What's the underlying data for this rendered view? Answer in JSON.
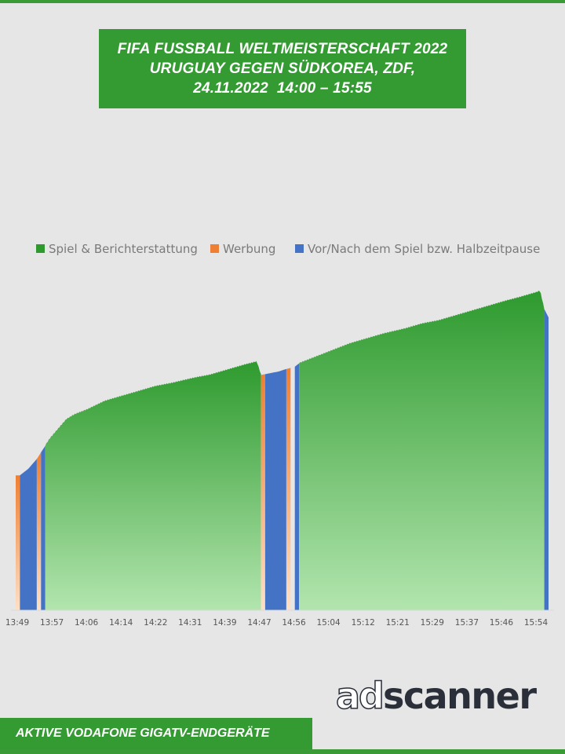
{
  "title": {
    "line1": "FIFA FUSSBALL WELTMEISTERSCHAFT 2022",
    "line2": "URUGUAY GEGEN SÜDKOREA, ZDF,",
    "line3": "24.11.2022  14:00 – 15:55"
  },
  "footer": {
    "label": "AKTIVE VODAFONE GIGATV-ENDGERÄTE"
  },
  "logo": {
    "part1": "ad",
    "part2": "scanner"
  },
  "colors": {
    "background": "#e6e6e6",
    "brand_green": "#349b33",
    "spiel_top": "#2e9a2e",
    "spiel_bottom": "#b2e5ae",
    "werbung_top": "#ef7f32",
    "werbung_bottom": "#fde0c7",
    "vor_nach": "#4472c4"
  },
  "chart_data": {
    "type": "area",
    "legend_position": "top",
    "grid": false,
    "y_axis_shown": false,
    "x_tick_labels": [
      "13:49",
      "13:57",
      "14:06",
      "14:14",
      "14:22",
      "14:31",
      "14:39",
      "14:47",
      "14:56",
      "15:04",
      "15:12",
      "15:21",
      "15:29",
      "15:37",
      "15:46",
      "15:54"
    ],
    "series": [
      {
        "name": "Spiel & Berichterstattung",
        "color": "#2e9a2e"
      },
      {
        "name": "Werbung",
        "color": "#ef7f32"
      },
      {
        "name": "Vor/Nach dem Spiel bzw. Halbzeitpause",
        "color": "#4472c4"
      }
    ],
    "segments": [
      {
        "series": "Werbung",
        "start": "13:49",
        "end": "13:50"
      },
      {
        "series": "Vor/Nach dem Spiel bzw. Halbzeitpause",
        "start": "13:50",
        "end": "13:54"
      },
      {
        "series": "Werbung",
        "start": "13:54",
        "end": "13:55"
      },
      {
        "series": "Vor/Nach dem Spiel bzw. Halbzeitpause",
        "start": "13:55",
        "end": "13:56"
      },
      {
        "series": "Spiel & Berichterstattung",
        "start": "13:56",
        "end": "14:47"
      },
      {
        "series": "Werbung",
        "start": "14:47",
        "end": "14:48"
      },
      {
        "series": "Vor/Nach dem Spiel bzw. Halbzeitpause",
        "start": "14:48",
        "end": "14:53"
      },
      {
        "series": "Werbung",
        "start": "14:53",
        "end": "14:54"
      },
      {
        "series": "Vor/Nach dem Spiel bzw. Halbzeitpause",
        "start": "14:55",
        "end": "14:56"
      },
      {
        "series": "Spiel & Berichterstattung",
        "start": "14:56",
        "end": "15:54"
      },
      {
        "series": "Vor/Nach dem Spiel bzw. Halbzeitpause",
        "start": "15:54",
        "end": "15:55"
      }
    ],
    "y_relative_max": 100,
    "profile": [
      [
        "13:49",
        41
      ],
      [
        "13:50",
        41
      ],
      [
        "13:52",
        43
      ],
      [
        "13:54",
        46
      ],
      [
        "13:55",
        48
      ],
      [
        "13:57",
        52
      ],
      [
        "13:59",
        55
      ],
      [
        "14:01",
        58
      ],
      [
        "14:03",
        59.5
      ],
      [
        "14:06",
        61
      ],
      [
        "14:10",
        63.5
      ],
      [
        "14:14",
        65
      ],
      [
        "14:18",
        66.5
      ],
      [
        "14:22",
        68
      ],
      [
        "14:26",
        69
      ],
      [
        "14:31",
        70.5
      ],
      [
        "14:35",
        71.5
      ],
      [
        "14:39",
        73
      ],
      [
        "14:43",
        74.5
      ],
      [
        "14:46",
        75.5
      ],
      [
        "14:47",
        71.5
      ],
      [
        "14:49",
        72
      ],
      [
        "14:51",
        72.5
      ],
      [
        "14:53",
        73.3
      ],
      [
        "14:55",
        74
      ],
      [
        "14:56",
        75
      ],
      [
        "15:00",
        77
      ],
      [
        "15:04",
        79
      ],
      [
        "15:08",
        81
      ],
      [
        "15:12",
        82.5
      ],
      [
        "15:16",
        84
      ],
      [
        "15:21",
        85.5
      ],
      [
        "15:25",
        87
      ],
      [
        "15:29",
        88
      ],
      [
        "15:33",
        89.5
      ],
      [
        "15:37",
        91
      ],
      [
        "15:41",
        92.5
      ],
      [
        "15:45",
        94
      ],
      [
        "15:48",
        95
      ],
      [
        "15:52",
        96.5
      ],
      [
        "15:53",
        97
      ],
      [
        "15:54",
        91.5
      ],
      [
        "15:55",
        89
      ]
    ]
  }
}
